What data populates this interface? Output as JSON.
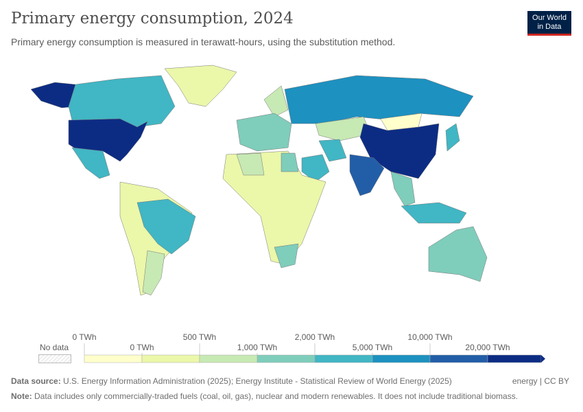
{
  "header": {
    "title": "Primary energy consumption, 2024",
    "subtitle": "Primary energy consumption is measured in terawatt-hours, using the substitution method.",
    "logo": "Our World in Data"
  },
  "legend": {
    "no_data": "No data",
    "colors": [
      "#ffffcc",
      "#ebf7a9",
      "#c7e9b4",
      "#7fcdbb",
      "#41b6c4",
      "#1d91c0",
      "#225ea8",
      "#0c2c84"
    ],
    "labels_top": [
      "0 TWh",
      "500 TWh",
      "2,000 TWh",
      "10,000 TWh"
    ],
    "labels_bottom": [
      "0 TWh",
      "1,000 TWh",
      "5,000 TWh",
      "20,000 TWh"
    ]
  },
  "footer": {
    "source_label": "Data source:",
    "source": "U.S. Energy Information Administration (2025); Energy Institute - Statistical Review of World Energy (2025)",
    "license": "energy | CC BY",
    "note_label": "Note:",
    "note": "Data includes only commercially-traded fuels (coal, oil, gas), nuclear and modern renewables. It does not include traditional biomass."
  },
  "map_regions": [
    {
      "name": "united-states",
      "bin": 7
    },
    {
      "name": "china",
      "bin": 7
    },
    {
      "name": "india",
      "bin": 6
    },
    {
      "name": "russia",
      "bin": 5
    },
    {
      "name": "canada",
      "bin": 4
    },
    {
      "name": "brazil",
      "bin": 4
    },
    {
      "name": "japan",
      "bin": 4
    },
    {
      "name": "australia",
      "bin": 3
    },
    {
      "name": "mexico",
      "bin": 4
    },
    {
      "name": "saudi-arabia",
      "bin": 4
    },
    {
      "name": "iran",
      "bin": 4
    },
    {
      "name": "europe",
      "bin": 3
    },
    {
      "name": "south-africa",
      "bin": 3
    },
    {
      "name": "indonesia",
      "bin": 4
    },
    {
      "name": "argentina",
      "bin": 2
    },
    {
      "name": "kazakhstan",
      "bin": 2
    },
    {
      "name": "africa",
      "bin": 1
    },
    {
      "name": "greenland",
      "bin": 1
    },
    {
      "name": "alaska",
      "bin": 7
    },
    {
      "name": "south-america-rest",
      "bin": 1
    },
    {
      "name": "algeria",
      "bin": 2
    },
    {
      "name": "egypt",
      "bin": 3
    },
    {
      "name": "mongolia",
      "bin": 0
    },
    {
      "name": "southeast-asia",
      "bin": 3
    },
    {
      "name": "scandinavia",
      "bin": 2
    }
  ]
}
